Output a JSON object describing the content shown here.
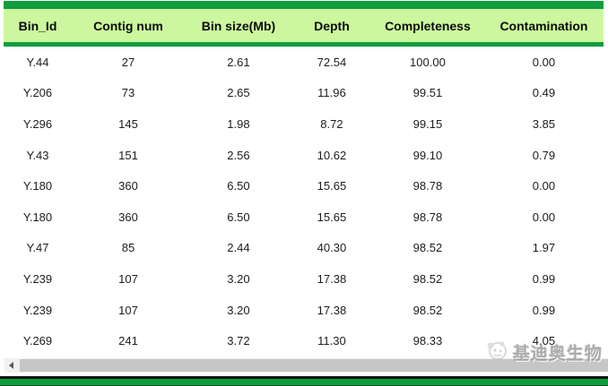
{
  "table": {
    "columns": [
      "Bin_Id",
      "Contig num",
      "Bin size(Mb)",
      "Depth",
      "Completeness",
      "Contamination"
    ],
    "rows": [
      [
        "Y.44",
        "27",
        "2.61",
        "72.54",
        "100.00",
        "0.00"
      ],
      [
        "Y.206",
        "73",
        "2.65",
        "11.96",
        "99.51",
        "0.49"
      ],
      [
        "Y.296",
        "145",
        "1.98",
        "8.72",
        "99.15",
        "3.85"
      ],
      [
        "Y.43",
        "151",
        "2.56",
        "10.62",
        "99.10",
        "0.79"
      ],
      [
        "Y.180",
        "360",
        "6.50",
        "15.65",
        "98.78",
        "0.00"
      ],
      [
        "Y.180",
        "360",
        "6.50",
        "15.65",
        "98.78",
        "0.00"
      ],
      [
        "Y.47",
        "85",
        "2.44",
        "40.30",
        "98.52",
        "1.97"
      ],
      [
        "Y.239",
        "107",
        "3.20",
        "17.38",
        "98.52",
        "0.99"
      ],
      [
        "Y.239",
        "107",
        "3.20",
        "17.38",
        "98.52",
        "0.99"
      ],
      [
        "Y.269",
        "241",
        "3.72",
        "11.30",
        "98.33",
        "4.05"
      ]
    ]
  },
  "chart_data": {
    "type": "table",
    "columns": [
      "Bin_Id",
      "Contig num",
      "Bin size(Mb)",
      "Depth",
      "Completeness",
      "Contamination"
    ],
    "rows": [
      [
        "Y.44",
        27,
        2.61,
        72.54,
        100.0,
        0.0
      ],
      [
        "Y.206",
        73,
        2.65,
        11.96,
        99.51,
        0.49
      ],
      [
        "Y.296",
        145,
        1.98,
        8.72,
        99.15,
        3.85
      ],
      [
        "Y.43",
        151,
        2.56,
        10.62,
        99.1,
        0.79
      ],
      [
        "Y.180",
        360,
        6.5,
        15.65,
        98.78,
        0.0
      ],
      [
        "Y.180",
        360,
        6.5,
        15.65,
        98.78,
        0.0
      ],
      [
        "Y.47",
        85,
        2.44,
        40.3,
        98.52,
        1.97
      ],
      [
        "Y.239",
        107,
        3.2,
        17.38,
        98.52,
        0.99
      ],
      [
        "Y.239",
        107,
        3.2,
        17.38,
        98.52,
        0.99
      ],
      [
        "Y.269",
        241,
        3.72,
        11.3,
        98.33,
        4.05
      ]
    ]
  },
  "watermark": {
    "text": "基迪奥生物"
  },
  "colors": {
    "accent_green": "#0f9d3f",
    "header_bg": "#ccf79e",
    "scrollbar_thumb": "#c6c6c6",
    "scrollbar_track": "#f1f1f1"
  }
}
